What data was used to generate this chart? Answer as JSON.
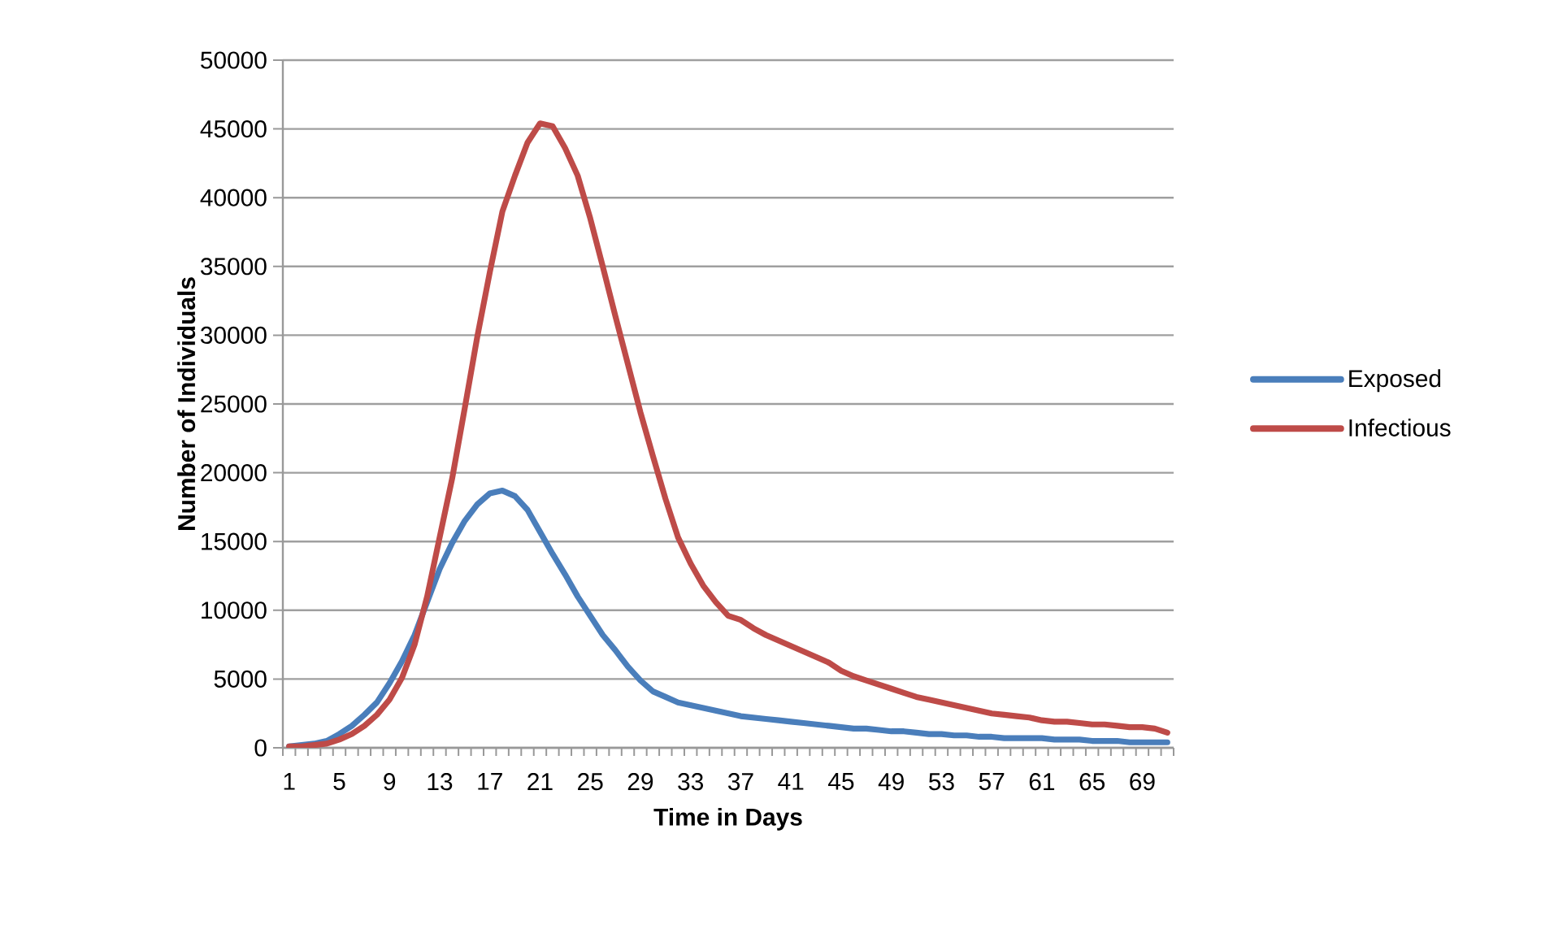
{
  "chart_data": {
    "type": "line",
    "xlabel": "Time in Days",
    "ylabel": "Number of Individuals",
    "categories": [
      "1",
      null,
      null,
      null,
      "5",
      null,
      null,
      null,
      "9",
      null,
      null,
      null,
      "13",
      null,
      null,
      null,
      "17",
      null,
      null,
      null,
      "21",
      null,
      null,
      null,
      "25",
      null,
      null,
      null,
      "29",
      null,
      null,
      null,
      "33",
      null,
      null,
      null,
      "37",
      null,
      null,
      null,
      "41",
      null,
      null,
      null,
      "45",
      null,
      null,
      null,
      "49",
      null,
      null,
      null,
      "53",
      null,
      null,
      null,
      "57",
      null,
      null,
      null,
      "61",
      null,
      null,
      null,
      "65",
      null,
      null,
      null,
      "69",
      null,
      null
    ],
    "series": [
      {
        "name": "Exposed",
        "color": "#4a7ebb",
        "values": [
          100,
          200,
          300,
          500,
          1000,
          1600,
          2400,
          3300,
          4700,
          6300,
          8200,
          10600,
          13000,
          14900,
          16500,
          17700,
          18500,
          18700,
          18300,
          17300,
          15700,
          14100,
          12600,
          11000,
          9600,
          8200,
          7100,
          5900,
          4900,
          4100,
          3700,
          3300,
          3100,
          2900,
          2700,
          2500,
          2300,
          2200,
          2100,
          2000,
          1900,
          1800,
          1700,
          1600,
          1500,
          1400,
          1400,
          1300,
          1200,
          1200,
          1100,
          1000,
          1000,
          900,
          900,
          800,
          800,
          700,
          700,
          700,
          700,
          600,
          600,
          600,
          500,
          500,
          500,
          400,
          400,
          400,
          400
        ]
      },
      {
        "name": "Infectious",
        "color": "#be4b48",
        "values": [
          100,
          100,
          200,
          300,
          600,
          1000,
          1600,
          2400,
          3500,
          5100,
          7500,
          11000,
          15300,
          19600,
          24700,
          29900,
          34600,
          39000,
          41600,
          44000,
          45400,
          45200,
          43600,
          41600,
          38500,
          35000,
          31400,
          27900,
          24400,
          21200,
          18100,
          15300,
          13400,
          11800,
          10600,
          9600,
          9300,
          8700,
          8200,
          7800,
          7400,
          7000,
          6600,
          6200,
          5600,
          5200,
          4900,
          4600,
          4300,
          4000,
          3700,
          3500,
          3300,
          3100,
          2900,
          2700,
          2500,
          2400,
          2300,
          2200,
          2000,
          1900,
          1900,
          1800,
          1700,
          1700,
          1600,
          1500,
          1500,
          1400,
          1100
        ]
      }
    ],
    "ylim": [
      0,
      50000
    ],
    "yticks": [
      0,
      5000,
      10000,
      15000,
      20000,
      25000,
      30000,
      35000,
      40000,
      45000,
      50000
    ],
    "grid": "y",
    "legend": "right",
    "marker": "none",
    "line_style": "solid"
  }
}
